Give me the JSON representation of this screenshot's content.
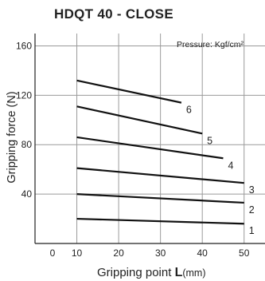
{
  "chart_data": {
    "type": "line",
    "title": "HDQT 40 - CLOSE",
    "xlabel_prefix": "Gripping point ",
    "xlabel_var": "L",
    "xlabel_unit": "(mm)",
    "ylabel": "Gripping force (N)",
    "annotation": "Pressure: Kgf/cm²",
    "xlim": [
      0,
      55
    ],
    "ylim": [
      0,
      170
    ],
    "x_ticks": [
      0,
      10,
      20,
      30,
      40,
      50
    ],
    "y_ticks": [
      40,
      80,
      120,
      160
    ],
    "grid": true,
    "series": [
      {
        "name": "1",
        "x": [
          10,
          50
        ],
        "y": [
          20,
          16
        ]
      },
      {
        "name": "2",
        "x": [
          10,
          50
        ],
        "y": [
          40,
          33
        ]
      },
      {
        "name": "3",
        "x": [
          10,
          50
        ],
        "y": [
          61,
          49
        ]
      },
      {
        "name": "4",
        "x": [
          10,
          45
        ],
        "y": [
          86,
          69
        ]
      },
      {
        "name": "5",
        "x": [
          10,
          40
        ],
        "y": [
          111,
          89
        ]
      },
      {
        "name": "6",
        "x": [
          10,
          35
        ],
        "y": [
          132,
          114
        ]
      }
    ],
    "line_color": "#111111"
  }
}
